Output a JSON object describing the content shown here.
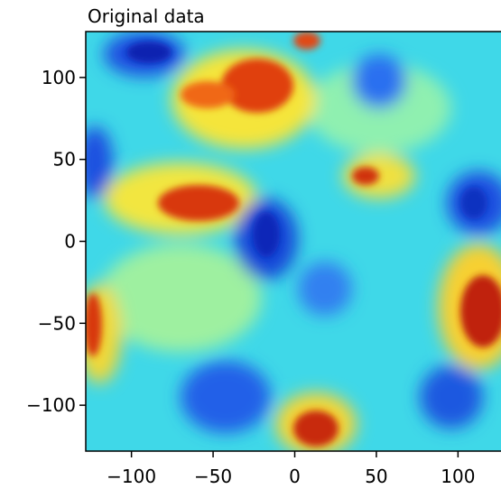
{
  "chart_data": {
    "type": "heatmap",
    "title": "Original data",
    "xlim": [
      -128,
      128
    ],
    "ylim": [
      -128,
      128
    ],
    "xticks": [
      {
        "value": -100,
        "label": "−100"
      },
      {
        "value": -50,
        "label": "−50"
      },
      0,
      50,
      100
    ],
    "yticks": [
      {
        "value": -100,
        "label": "−100"
      },
      {
        "value": -50,
        "label": "−50"
      },
      0,
      50,
      100
    ],
    "colormap": "jet"
  }
}
